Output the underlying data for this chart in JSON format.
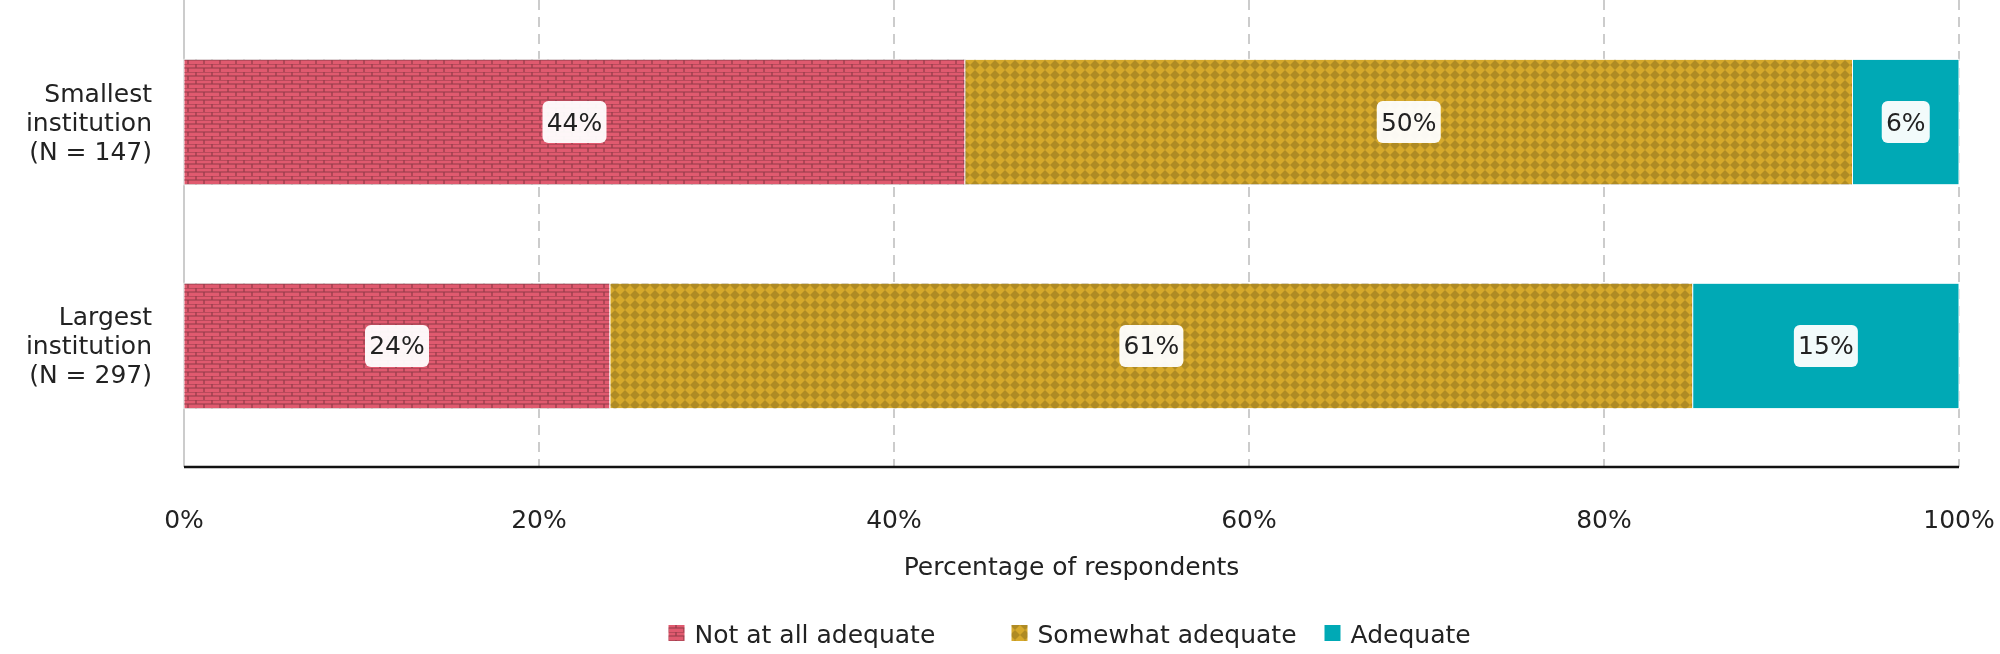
{
  "chart_data": {
    "type": "bar",
    "orientation": "horizontal",
    "stacked": true,
    "categories": [
      "Smallest\ninstitution\n(N = 147)",
      "Largest\ninstitution\n(N = 297)"
    ],
    "series": [
      {
        "name": "Not at all adequate",
        "color": "#e05a6f",
        "values": [
          44,
          24
        ],
        "value_labels": [
          "44%",
          "24%"
        ]
      },
      {
        "name": "Somewhat adequate",
        "color": "#d6a92c",
        "values": [
          50,
          61
        ],
        "value_labels": [
          "50%",
          "61%"
        ]
      },
      {
        "name": "Adequate",
        "color": "#00a9b5",
        "values": [
          6,
          15
        ],
        "value_labels": [
          "6%",
          "15%"
        ]
      }
    ],
    "xlabel": "Percentage of respondents",
    "xlim": [
      0,
      100
    ],
    "xticks": [
      {
        "value": 0,
        "label": "0%"
      },
      {
        "value": 20,
        "label": "20%"
      },
      {
        "value": 40,
        "label": "40%"
      },
      {
        "value": 60,
        "label": "60%"
      },
      {
        "value": 80,
        "label": "80%"
      },
      {
        "value": 100,
        "label": "100%"
      }
    ],
    "grid": "x",
    "legend": "bottom"
  }
}
